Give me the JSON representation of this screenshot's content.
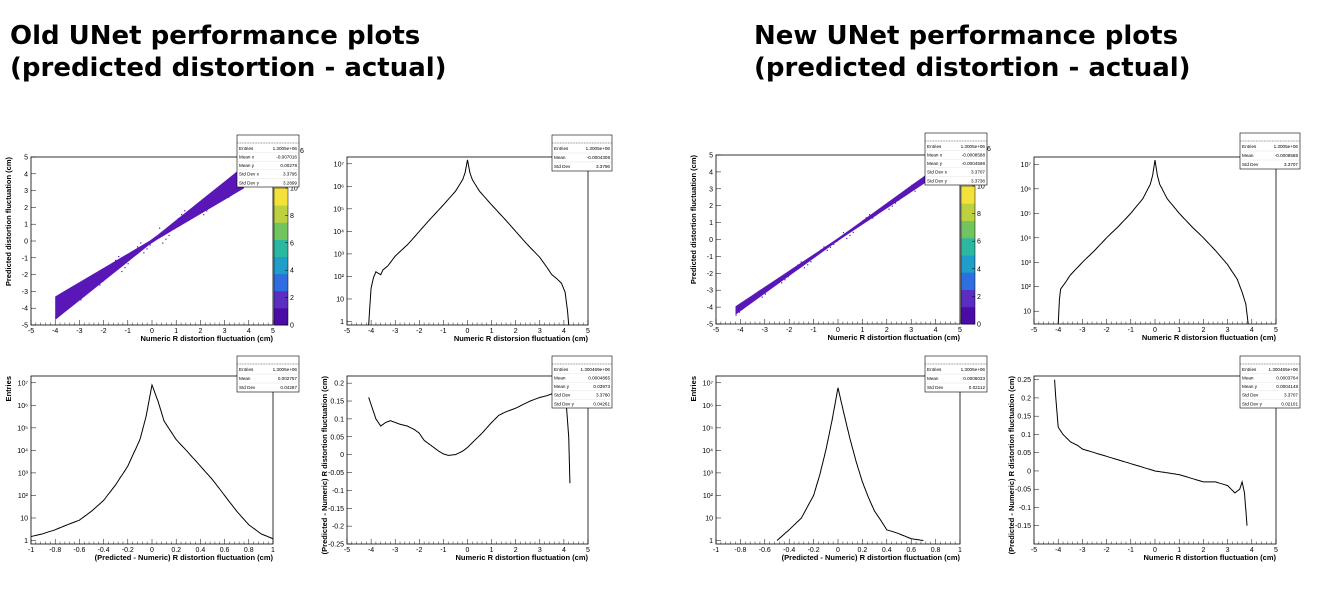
{
  "headings": {
    "left": "Old UNet performance plots (predicted distortion - actual)",
    "right": "New UNet performance plots (predicted distortion - actual)"
  },
  "colors": {
    "scatter": "#5a17b8",
    "line": "#000000",
    "palette": [
      "#4b0ca6",
      "#5b2dc1",
      "#2f6ee0",
      "#1f9ec9",
      "#2cb8a0",
      "#72c55e",
      "#bcd040",
      "#f2e23a"
    ]
  },
  "chart_data": [
    {
      "id": "old-2d",
      "type": "scatter",
      "xlabel": "Numeric R distortion fluctuation (cm)",
      "ylabel": "Predicted distortion fluctuation (cm)",
      "xlim": [
        -5,
        5
      ],
      "ylim": [
        -5,
        5
      ],
      "x_ticks": [
        "-5",
        "-4",
        "-3",
        "-2",
        "-1",
        "0",
        "1",
        "2",
        "3",
        "4",
        "5"
      ],
      "y_ticks": [
        "-5",
        "-4",
        "-3",
        "-2",
        "-1",
        "0",
        "1",
        "2",
        "3",
        "4",
        "5"
      ],
      "colorbar": {
        "range": [
          0,
          10
        ],
        "ticks": [
          "0",
          "2",
          "4",
          "6",
          "8",
          "10"
        ],
        "exponent": "6"
      },
      "band": {
        "x": [
          -4,
          3.8
        ],
        "slope": 1.0,
        "width": [
          0.1,
          0.7
        ]
      },
      "stats": [
        [
          "Entries",
          "1.3005e+06"
        ],
        [
          "Mean x",
          "-0.007016"
        ],
        [
          "Mean y",
          "0.00278"
        ],
        [
          "Std Dev x",
          "3.3795"
        ],
        [
          "Std Dev y",
          "3.2899"
        ]
      ]
    },
    {
      "id": "old-1d-r",
      "type": "line",
      "log_y": true,
      "xlabel": "Numeric R distorsion fluctuation (cm)",
      "ylabel": "",
      "xlim": [
        -5,
        5
      ],
      "ylim": [
        0.7,
        20000000
      ],
      "x_ticks": [
        "-5",
        "-4",
        "-3",
        "-2",
        "-1",
        "0",
        "1",
        "2",
        "3",
        "4",
        "5"
      ],
      "y_ticks": [
        {
          "value": 1,
          "label": "1"
        },
        {
          "value": 10,
          "label": "10"
        },
        {
          "value": 100,
          "label": "10²"
        },
        {
          "value": 1000,
          "label": "10³"
        },
        {
          "value": 10000,
          "label": "10⁴"
        },
        {
          "value": 100000,
          "label": "10⁵"
        },
        {
          "value": 1000000,
          "label": "10⁶"
        },
        {
          "value": 10000000,
          "label": "10⁷"
        }
      ],
      "x": [
        -4.1,
        -4.05,
        -4.0,
        -3.9,
        -3.8,
        -3.6,
        -3.5,
        -3.3,
        -3.0,
        -2.5,
        -2.0,
        -1.5,
        -1.0,
        -0.5,
        -0.2,
        -0.1,
        0.0,
        0.1,
        0.2,
        0.5,
        1.0,
        1.5,
        2.0,
        2.5,
        3.0,
        3.3,
        3.5,
        3.7,
        3.9,
        4.05,
        4.15,
        4.2
      ],
      "y": [
        0.7,
        5,
        30,
        90,
        160,
        120,
        200,
        300,
        800,
        2500,
        10000,
        40000,
        150000,
        600000,
        2000000,
        4000000,
        15000000,
        4000000,
        2000000,
        600000,
        150000,
        40000,
        10000,
        2500,
        700,
        250,
        120,
        80,
        50,
        20,
        3,
        0.7
      ],
      "stats": [
        [
          "Entries",
          "1.3005e+06"
        ],
        [
          "Mean",
          "-0.0004308"
        ],
        [
          "Std Dev",
          "3.3796"
        ]
      ]
    },
    {
      "id": "old-1d-diff",
      "type": "line",
      "log_y": true,
      "xlabel": "(Predicted - Numeric) R distortion fluctuation (cm)",
      "ylabel": "Entries",
      "xlim": [
        -1,
        1
      ],
      "ylim": [
        0.7,
        20000000
      ],
      "x_ticks": [
        "-1",
        "-0.8",
        "-0.6",
        "-0.4",
        "-0.2",
        "0",
        "0.2",
        "0.4",
        "0.6",
        "0.8",
        "1"
      ],
      "y_ticks": [
        {
          "value": 1,
          "label": "1"
        },
        {
          "value": 10,
          "label": "10"
        },
        {
          "value": 100,
          "label": "10²"
        },
        {
          "value": 1000,
          "label": "10³"
        },
        {
          "value": 10000,
          "label": "10⁴"
        },
        {
          "value": 100000,
          "label": "10⁵"
        },
        {
          "value": 1000000,
          "label": "10⁶"
        },
        {
          "value": 10000000,
          "label": "10⁷"
        }
      ],
      "x": [
        -1.0,
        -0.9,
        -0.8,
        -0.7,
        -0.6,
        -0.5,
        -0.4,
        -0.3,
        -0.2,
        -0.1,
        -0.05,
        0.0,
        0.05,
        0.1,
        0.2,
        0.3,
        0.4,
        0.5,
        0.6,
        0.7,
        0.8,
        0.9,
        1.0
      ],
      "y": [
        1.5,
        2,
        3,
        5,
        8,
        20,
        60,
        300,
        2000,
        30000,
        300000,
        8000000,
        1500000,
        200000,
        30000,
        8000,
        2000,
        500,
        100,
        20,
        5,
        2,
        1.2
      ],
      "stats": [
        [
          "Entries",
          "1.3005e+06"
        ],
        [
          "Mean",
          "0.002757"
        ],
        [
          "Std Dev",
          "0.04287"
        ]
      ]
    },
    {
      "id": "old-profile",
      "type": "line",
      "xlabel": "Numeric R distortion fluctuation (cm)",
      "ylabel": "(Predicted - Numeric) R distortion fluctuation (cm)",
      "xlim": [
        -5,
        5
      ],
      "ylim": [
        -0.25,
        0.22
      ],
      "x_ticks": [
        "-5",
        "-4",
        "-3",
        "-2",
        "-1",
        "0",
        "1",
        "2",
        "3",
        "4",
        "5"
      ],
      "y_ticks": [
        {
          "value": -0.25,
          "label": "-0.25"
        },
        {
          "value": -0.2,
          "label": "-0.2"
        },
        {
          "value": -0.15,
          "label": "-0.15"
        },
        {
          "value": -0.1,
          "label": "-0.1"
        },
        {
          "value": -0.05,
          "label": "-0.05"
        },
        {
          "value": 0,
          "label": "0"
        },
        {
          "value": 0.05,
          "label": "0.05"
        },
        {
          "value": 0.1,
          "label": "0.1"
        },
        {
          "value": 0.15,
          "label": "0.15"
        },
        {
          "value": 0.2,
          "label": "0.2"
        }
      ],
      "x": [
        -4.1,
        -4.0,
        -3.8,
        -3.6,
        -3.4,
        -3.2,
        -3.0,
        -2.8,
        -2.5,
        -2.2,
        -2.0,
        -1.8,
        -1.5,
        -1.2,
        -1.0,
        -0.8,
        -0.5,
        -0.2,
        0.0,
        0.3,
        0.6,
        1.0,
        1.3,
        1.6,
        2.0,
        2.3,
        2.6,
        3.0,
        3.3,
        3.5,
        3.7,
        3.9,
        4.0,
        4.1,
        4.2,
        4.25
      ],
      "y": [
        0.16,
        0.14,
        0.1,
        0.08,
        0.09,
        0.095,
        0.09,
        0.085,
        0.08,
        0.07,
        0.06,
        0.04,
        0.025,
        0.01,
        0.002,
        -0.002,
        0.0,
        0.01,
        0.02,
        0.04,
        0.06,
        0.09,
        0.11,
        0.12,
        0.13,
        0.14,
        0.15,
        0.16,
        0.165,
        0.17,
        0.19,
        0.17,
        0.2,
        0.14,
        0.05,
        -0.08
      ],
      "stats": [
        [
          "Entries",
          "1.300469e+06"
        ],
        [
          "Mean",
          "0.0004865"
        ],
        [
          "Mean y",
          "0.03973"
        ],
        [
          "Std Dev",
          "3.3780"
        ],
        [
          "Std Dev y",
          "0.04261"
        ]
      ]
    },
    {
      "id": "new-2d",
      "type": "scatter",
      "xlabel": "Numeric R distortion fluctuation (cm)",
      "ylabel": "Predicted distortion fluctuation (cm)",
      "xlim": [
        -5,
        5
      ],
      "ylim": [
        -5,
        5
      ],
      "x_ticks": [
        "-5",
        "-4",
        "-3",
        "-2",
        "-1",
        "0",
        "1",
        "2",
        "3",
        "4",
        "5"
      ],
      "y_ticks": [
        "-5",
        "-4",
        "-3",
        "-2",
        "-1",
        "0",
        "1",
        "2",
        "3",
        "4",
        "5"
      ],
      "colorbar": {
        "range": [
          0,
          10
        ],
        "ticks": [
          "0",
          "2",
          "4",
          "6",
          "8",
          "10"
        ],
        "exponent": "6"
      },
      "band": {
        "x": [
          -4.2,
          3.8
        ],
        "slope": 1.0,
        "width": [
          0.08,
          0.25
        ]
      },
      "stats": [
        [
          "Entries",
          "1.3005e+06"
        ],
        [
          "Mean x",
          "-0.0008588"
        ],
        [
          "Mean y",
          "-0.0004598"
        ],
        [
          "Std Dev x",
          "3.3707"
        ],
        [
          "Std Dev y",
          "3.3738"
        ]
      ]
    },
    {
      "id": "new-1d-r",
      "type": "line",
      "log_y": true,
      "xlabel": "Numeric R distorsion fluctuation (cm)",
      "ylabel": "",
      "xlim": [
        -5,
        5
      ],
      "ylim": [
        3,
        20000000
      ],
      "x_ticks": [
        "-5",
        "-4",
        "-3",
        "-2",
        "-1",
        "0",
        "1",
        "2",
        "3",
        "4",
        "5"
      ],
      "y_ticks": [
        {
          "value": 10,
          "label": "10"
        },
        {
          "value": 100,
          "label": "10²"
        },
        {
          "value": 1000,
          "label": "10³"
        },
        {
          "value": 10000,
          "label": "10⁴"
        },
        {
          "value": 100000,
          "label": "10⁵"
        },
        {
          "value": 1000000,
          "label": "10⁶"
        },
        {
          "value": 10000000,
          "label": "10⁷"
        }
      ],
      "x": [
        -4.0,
        -3.95,
        -3.9,
        -3.7,
        -3.5,
        -3.0,
        -2.5,
        -2.0,
        -1.5,
        -1.0,
        -0.5,
        -0.2,
        -0.1,
        0.0,
        0.1,
        0.2,
        0.5,
        1.0,
        1.5,
        2.0,
        2.5,
        3.0,
        3.4,
        3.6,
        3.75,
        3.85
      ],
      "y": [
        3,
        30,
        80,
        150,
        300,
        1000,
        3000,
        10000,
        30000,
        100000,
        400000,
        1500000,
        3500000,
        15000000,
        3500000,
        1500000,
        400000,
        100000,
        30000,
        10000,
        3000,
        800,
        200,
        60,
        20,
        3
      ],
      "stats": [
        [
          "Entries",
          "1.3005e+06"
        ],
        [
          "Mean",
          "-0.0008588"
        ],
        [
          "Std Dev",
          "3.3707"
        ]
      ]
    },
    {
      "id": "new-1d-diff",
      "type": "line",
      "log_y": true,
      "xlabel": "(Predicted - Numeric) R distortion fluctuation (cm)",
      "ylabel": "Entries",
      "xlim": [
        -1,
        1
      ],
      "ylim": [
        0.7,
        20000000
      ],
      "x_ticks": [
        "-1",
        "-0.8",
        "-0.6",
        "-0.4",
        "-0.2",
        "0",
        "0.2",
        "0.4",
        "0.6",
        "0.8",
        "1"
      ],
      "y_ticks": [
        {
          "value": 1,
          "label": "1"
        },
        {
          "value": 10,
          "label": "10"
        },
        {
          "value": 100,
          "label": "10²"
        },
        {
          "value": 1000,
          "label": "10³"
        },
        {
          "value": 10000,
          "label": "10⁴"
        },
        {
          "value": 100000,
          "label": "10⁵"
        },
        {
          "value": 1000000,
          "label": "10⁶"
        },
        {
          "value": 10000000,
          "label": "10⁷"
        }
      ],
      "x": [
        -0.5,
        -0.4,
        -0.3,
        -0.2,
        -0.15,
        -0.1,
        -0.05,
        0.0,
        0.05,
        0.1,
        0.15,
        0.2,
        0.25,
        0.3,
        0.35,
        0.4,
        0.5,
        0.6,
        0.7
      ],
      "y": [
        1,
        3,
        10,
        100,
        800,
        10000,
        200000,
        6000000,
        400000,
        30000,
        3000,
        400,
        80,
        20,
        8,
        3,
        2,
        1.2,
        1
      ],
      "stats": [
        [
          "Entries",
          "1.3005e+06"
        ],
        [
          "Mean",
          "0.0006033"
        ],
        [
          "Std Dev",
          "0.02112"
        ]
      ]
    },
    {
      "id": "new-profile",
      "type": "line",
      "xlabel": "Numeric R distortion fluctuation (cm)",
      "ylabel": "(Predicted - Numeric) R distortion fluctuation (cm)",
      "xlim": [
        -5,
        5
      ],
      "ylim": [
        -0.2,
        0.26
      ],
      "x_ticks": [
        "-5",
        "-4",
        "-3",
        "-2",
        "-1",
        "0",
        "1",
        "2",
        "3",
        "4",
        "5"
      ],
      "y_ticks": [
        {
          "value": -0.15,
          "label": "-0.15"
        },
        {
          "value": -0.1,
          "label": "-0.1"
        },
        {
          "value": -0.05,
          "label": "-0.05"
        },
        {
          "value": 0,
          "label": "0"
        },
        {
          "value": 0.05,
          "label": "0.05"
        },
        {
          "value": 0.1,
          "label": "0.1"
        },
        {
          "value": 0.15,
          "label": "0.15"
        },
        {
          "value": 0.2,
          "label": "0.2"
        },
        {
          "value": 0.25,
          "label": "0.25"
        }
      ],
      "x": [
        -4.15,
        -4.1,
        -4.0,
        -3.8,
        -3.5,
        -3.2,
        -3.0,
        -2.5,
        -2.0,
        -1.5,
        -1.0,
        -0.5,
        0.0,
        0.5,
        1.0,
        1.5,
        2.0,
        2.5,
        3.0,
        3.3,
        3.5,
        3.6,
        3.7,
        3.8
      ],
      "y": [
        0.25,
        0.2,
        0.12,
        0.1,
        0.08,
        0.07,
        0.06,
        0.05,
        0.04,
        0.03,
        0.02,
        0.01,
        0.0,
        -0.005,
        -0.01,
        -0.02,
        -0.03,
        -0.03,
        -0.04,
        -0.06,
        -0.05,
        -0.03,
        -0.06,
        -0.15
      ],
      "stats": [
        [
          "Entries",
          "1.300465e+06"
        ],
        [
          "Mean",
          "0.0003764"
        ],
        [
          "Mean y",
          "0.0004148"
        ],
        [
          "Std Dev",
          "3.3707"
        ],
        [
          "Std Dev y",
          "0.02101"
        ]
      ]
    }
  ]
}
